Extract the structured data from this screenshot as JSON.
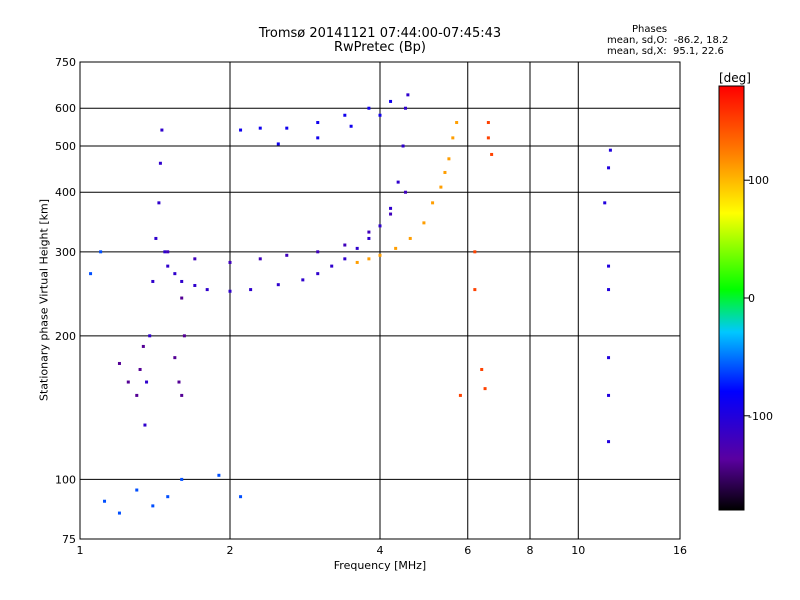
{
  "chart_data": {
    "type": "scatter",
    "title": "Tromsø 20141121 07:44:00-07:45:43",
    "subtitle": "RwPretec (Bp)",
    "xlabel": "Frequency [MHz]",
    "ylabel": "Stationary phase Virtual Height [km]",
    "x_scale": "log",
    "y_scale": "log",
    "xlim": [
      1,
      16
    ],
    "ylim": [
      75,
      750
    ],
    "x_ticks": [
      1,
      2,
      4,
      6,
      8,
      10,
      16
    ],
    "y_ticks": [
      75,
      100,
      200,
      300,
      400,
      500,
      600,
      750
    ],
    "grid": true,
    "phases_label": "Phases",
    "stats": [
      "mean, sd,O:  -86.2, 18.2",
      "mean, sd,X:  95.1, 22.6"
    ],
    "colorbar": {
      "label": "[deg]",
      "ticks": [
        100,
        0,
        -100
      ],
      "range": [
        -180,
        180
      ]
    },
    "series": [
      {
        "points": [
          [
            1.35,
            130
          ],
          [
            1.36,
            160
          ],
          [
            1.38,
            200
          ],
          [
            1.4,
            260
          ],
          [
            1.42,
            320
          ],
          [
            1.44,
            380
          ],
          [
            1.45,
            460
          ],
          [
            1.46,
            540
          ],
          [
            1.48,
            300
          ],
          [
            1.5,
            280
          ],
          [
            1.55,
            270
          ],
          [
            1.6,
            260
          ],
          [
            1.7,
            255
          ],
          [
            1.8,
            250
          ],
          [
            2.0,
            248
          ],
          [
            2.2,
            250
          ],
          [
            2.5,
            256
          ],
          [
            2.8,
            262
          ],
          [
            3.0,
            270
          ],
          [
            3.2,
            280
          ],
          [
            3.4,
            290
          ],
          [
            3.6,
            305
          ],
          [
            3.8,
            320
          ],
          [
            4.0,
            340
          ],
          [
            4.2,
            370
          ],
          [
            4.35,
            420
          ],
          [
            4.45,
            500
          ],
          [
            4.5,
            600
          ],
          [
            4.55,
            640
          ]
        ],
        "phase": -110
      },
      {
        "points": [
          [
            1.5,
            300
          ],
          [
            1.7,
            290
          ],
          [
            2.0,
            285
          ],
          [
            2.3,
            290
          ],
          [
            2.6,
            295
          ],
          [
            3.0,
            300
          ],
          [
            3.4,
            310
          ],
          [
            3.8,
            330
          ],
          [
            4.2,
            360
          ],
          [
            4.5,
            400
          ]
        ],
        "phase": -120
      },
      {
        "points": [
          [
            1.3,
            150
          ],
          [
            1.32,
            170
          ],
          [
            1.34,
            190
          ],
          [
            1.2,
            175
          ],
          [
            1.25,
            160
          ],
          [
            1.55,
            180
          ],
          [
            1.58,
            160
          ],
          [
            1.6,
            150
          ],
          [
            1.62,
            200
          ],
          [
            1.6,
            240
          ]
        ],
        "phase": -140
      },
      {
        "points": [
          [
            2.1,
            540
          ],
          [
            2.3,
            545
          ],
          [
            2.6,
            545
          ],
          [
            3.0,
            560
          ],
          [
            3.4,
            580
          ],
          [
            3.8,
            600
          ],
          [
            4.2,
            620
          ],
          [
            2.5,
            505
          ],
          [
            3.0,
            520
          ],
          [
            3.5,
            550
          ],
          [
            4.0,
            580
          ]
        ],
        "phase": -90
      },
      {
        "points": [
          [
            3.6,
            285
          ],
          [
            3.8,
            290
          ],
          [
            4.0,
            295
          ],
          [
            4.3,
            305
          ],
          [
            4.6,
            320
          ],
          [
            4.9,
            345
          ],
          [
            5.1,
            380
          ],
          [
            5.3,
            410
          ],
          [
            5.4,
            440
          ],
          [
            5.5,
            470
          ],
          [
            5.6,
            520
          ],
          [
            5.7,
            560
          ]
        ],
        "phase": 110
      },
      {
        "points": [
          [
            6.4,
            170
          ],
          [
            6.5,
            155
          ],
          [
            6.6,
            520
          ],
          [
            6.7,
            480
          ],
          [
            6.2,
            250
          ],
          [
            6.2,
            300
          ],
          [
            5.8,
            150
          ],
          [
            6.6,
            560
          ]
        ],
        "phase": 150
      },
      {
        "points": [
          [
            11.5,
            120
          ],
          [
            11.5,
            150
          ],
          [
            11.5,
            180
          ],
          [
            11.5,
            250
          ],
          [
            11.5,
            280
          ],
          [
            11.3,
            380
          ],
          [
            11.5,
            450
          ],
          [
            11.6,
            490
          ]
        ],
        "phase": -100
      },
      {
        "points": [
          [
            1.05,
            270
          ],
          [
            1.1,
            300
          ],
          [
            1.12,
            90
          ],
          [
            1.2,
            85
          ],
          [
            1.3,
            95
          ],
          [
            1.4,
            88
          ],
          [
            1.5,
            92
          ],
          [
            1.6,
            100
          ],
          [
            1.9,
            102
          ],
          [
            2.1,
            92
          ]
        ],
        "phase": -60
      }
    ]
  }
}
